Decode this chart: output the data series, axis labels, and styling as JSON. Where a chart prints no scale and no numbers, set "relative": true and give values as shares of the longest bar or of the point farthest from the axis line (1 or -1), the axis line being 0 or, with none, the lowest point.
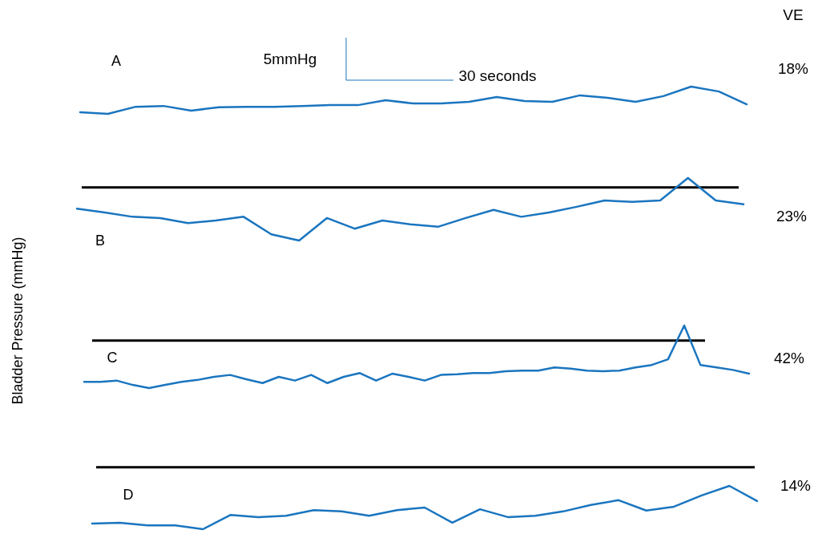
{
  "chart_data": [
    {
      "type": "line",
      "title": "A",
      "relative": true,
      "annotations": [
        "18%",
        "VE",
        "5mmHg",
        "30 seconds"
      ],
      "categories": [
        null,
        null,
        null,
        null,
        null,
        null,
        null,
        null,
        null,
        null,
        null,
        null,
        null,
        null,
        null,
        null,
        null,
        null,
        null,
        null,
        null,
        null,
        null,
        null,
        null
      ],
      "series": [
        {
          "color": "#1a75bf",
          "values": [
            0.06,
            0,
            0.26,
            0.29,
            0.12,
            0.24,
            0.26,
            0.26,
            0.29,
            0.32,
            0.32,
            0.5,
            0.38,
            0.38,
            0.44,
            0.62,
            0.47,
            0.44,
            0.68,
            0.59,
            0.44,
            0.65,
            1,
            0.82,
            0.35
          ]
        }
      ]
    },
    {
      "type": "line",
      "title": "B",
      "relative": true,
      "annotations": [
        "23%"
      ],
      "categories": [
        null,
        null,
        null,
        null,
        null,
        null,
        null,
        null,
        null,
        null,
        null,
        null,
        null,
        null,
        null,
        null,
        null,
        null,
        null,
        null,
        null,
        null,
        null,
        null,
        null
      ],
      "series": [
        {
          "color": "#1a75bf",
          "values": [
            0.51,
            0.45,
            0.38,
            0.36,
            0.28,
            0.32,
            0.38,
            0.1,
            0,
            0.36,
            0.19,
            0.32,
            0.26,
            0.22,
            0.36,
            0.49,
            0.38,
            0.45,
            0.54,
            0.64,
            0.62,
            0.64,
            1,
            0.64,
            0.58
          ]
        }
      ],
      "ref_lines": [
        {
          "axis": "y",
          "value": 0.85,
          "color": "#000000"
        }
      ]
    },
    {
      "type": "line",
      "title": "C",
      "ylabel": "Bladder Pressure (mmHg)",
      "relative": true,
      "annotations": [
        "42%"
      ],
      "categories": [
        null,
        null,
        null,
        null,
        null,
        null,
        null,
        null,
        null,
        null,
        null,
        null,
        null,
        null,
        null,
        null,
        null,
        null,
        null,
        null,
        null,
        null,
        null,
        null,
        null,
        null,
        null,
        null,
        null,
        null,
        null,
        null,
        null,
        null,
        null,
        null,
        null,
        null,
        null,
        null,
        null,
        null
      ],
      "series": [
        {
          "color": "#1a75bf",
          "values": [
            0.1,
            0.1,
            0.12,
            0.05,
            0,
            0.05,
            0.1,
            0.13,
            0.18,
            0.21,
            0.14,
            0.08,
            0.18,
            0.12,
            0.21,
            0.08,
            0.18,
            0.24,
            0.12,
            0.23,
            0.18,
            0.12,
            0.21,
            0.22,
            0.24,
            0.24,
            0.27,
            0.28,
            0.28,
            0.33,
            0.31,
            0.28,
            0.27,
            0.28,
            0.33,
            0.37,
            0.46,
            1,
            0.37,
            0.33,
            0.29,
            0.23
          ]
        }
      ],
      "ref_lines": [
        {
          "axis": "y",
          "value": 0.76,
          "color": "#000000"
        }
      ]
    },
    {
      "type": "line",
      "title": "D",
      "relative": true,
      "annotations": [
        "14%"
      ],
      "categories": [
        null,
        null,
        null,
        null,
        null,
        null,
        null,
        null,
        null,
        null,
        null,
        null,
        null,
        null,
        null,
        null,
        null,
        null,
        null,
        null,
        null,
        null,
        null,
        null,
        null
      ],
      "series": [
        {
          "color": "#1a75bf",
          "values": [
            0.13,
            0.15,
            0.09,
            0.09,
            0,
            0.33,
            0.28,
            0.31,
            0.44,
            0.41,
            0.31,
            0.44,
            0.5,
            0.15,
            0.46,
            0.28,
            0.31,
            0.41,
            0.56,
            0.67,
            0.43,
            0.52,
            0.78,
            1,
            0.65
          ]
        }
      ],
      "ref_lines": [
        {
          "axis": "y",
          "value": 1.43,
          "color": "#000000"
        }
      ]
    }
  ]
}
